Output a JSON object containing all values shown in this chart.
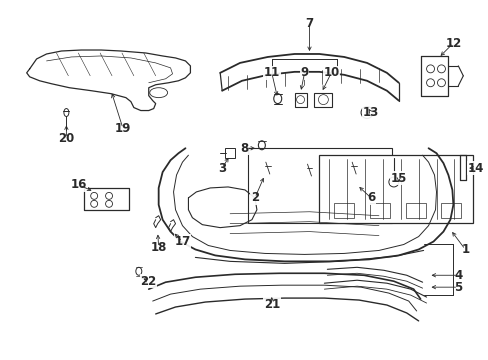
{
  "bg_color": "#ffffff",
  "line_color": "#2a2a2a",
  "fig_width": 4.89,
  "fig_height": 3.6,
  "dpi": 100,
  "label_fs": 8.5,
  "label_fs_small": 7.5
}
